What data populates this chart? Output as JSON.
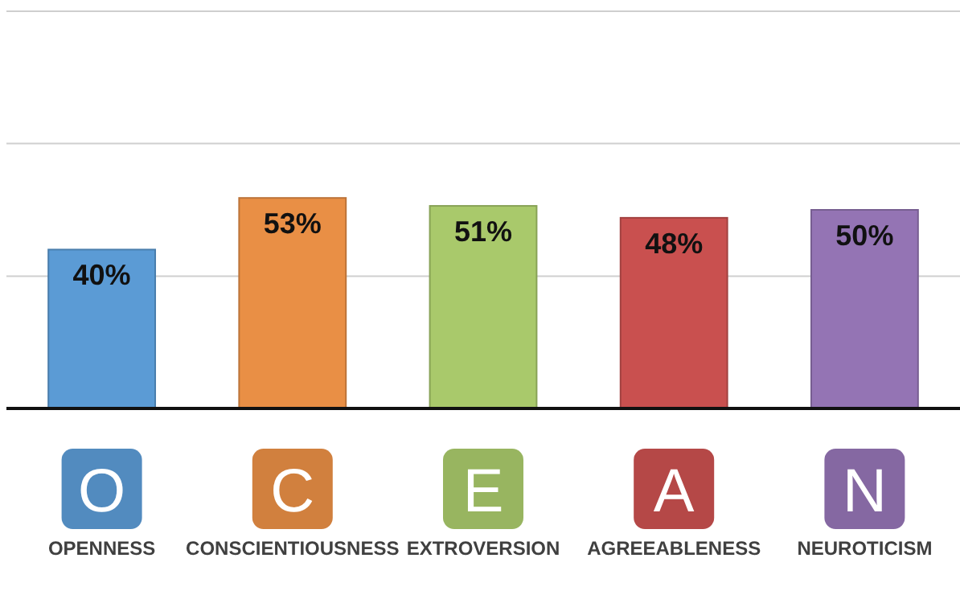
{
  "chart_data": {
    "type": "bar",
    "categories": [
      "OPENNESS",
      "CONSCIENTIOUSNESS",
      "EXTROVERSION",
      "AGREEABLENESS",
      "NEUROTICISM"
    ],
    "values": [
      40,
      53,
      51,
      48,
      50
    ],
    "value_labels": [
      "40%",
      "53%",
      "51%",
      "48%",
      "50%"
    ],
    "colors": [
      "#5b9bd5",
      "#e98f45",
      "#a9c96b",
      "#c9504f",
      "#9474b4"
    ],
    "ylim": [
      0,
      100
    ],
    "yticks": [
      {
        "value": 33.3,
        "label": null
      },
      {
        "value": 66.7,
        "label": null
      },
      {
        "value": 100,
        "label": null
      }
    ],
    "grid": "y",
    "tick_labels": "x",
    "annotations": [
      "O",
      "C",
      "E",
      "A",
      "N"
    ]
  }
}
